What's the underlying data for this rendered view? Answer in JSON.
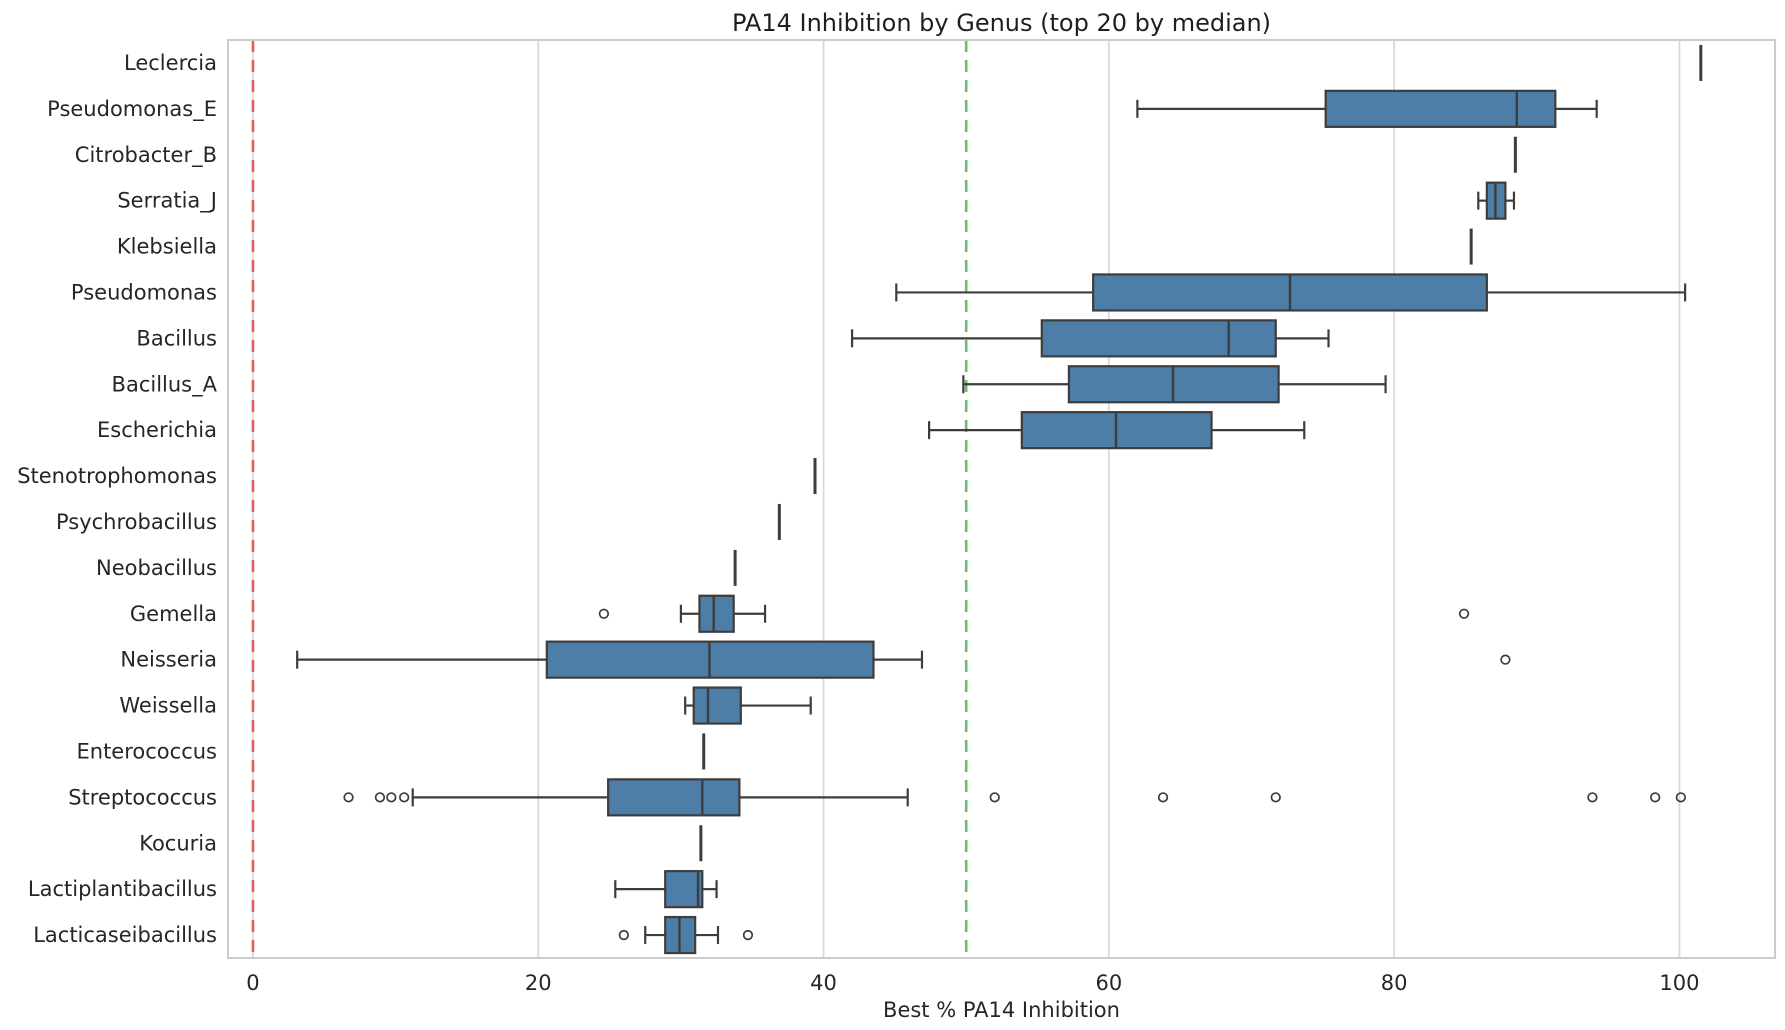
{
  "chart_data": {
    "type": "box",
    "orientation": "horizontal",
    "title": "PA14 Inhibition by Genus (top 20 by median)",
    "xlabel": "Best % PA14 Inhibition",
    "ylabel": "",
    "xlim": [
      -1.75,
      106.7
    ],
    "x_ticks": [
      0,
      20,
      40,
      60,
      80,
      100
    ],
    "grid": true,
    "legend": "none",
    "reference_lines": [
      {
        "x": 0,
        "color": "#e35f5f",
        "style": "dashed",
        "name": "zero-line"
      },
      {
        "x": 50,
        "color": "#6abf6a",
        "style": "dashed",
        "name": "fifty-percent-line"
      }
    ],
    "colors": {
      "box_fill": "#4d7ea8",
      "box_edge": "#3d3d3d",
      "grid": "#d9d9d9",
      "spine": "#cccccc",
      "text": "#262626",
      "background": "#ffffff"
    },
    "rows": [
      {
        "label": "Leclercia",
        "type": "single",
        "value": 101.5,
        "outliers": []
      },
      {
        "label": "Pseudomonas_E",
        "type": "box",
        "whislo": 62.0,
        "q1": 75.2,
        "med": 88.6,
        "q3": 91.3,
        "whishi": 94.2,
        "outliers": []
      },
      {
        "label": "Citrobacter_B",
        "type": "single",
        "value": 88.5,
        "outliers": []
      },
      {
        "label": "Serratia_J",
        "type": "box",
        "whislo": 85.9,
        "q1": 86.5,
        "med": 87.1,
        "q3": 87.8,
        "whishi": 88.4,
        "outliers": []
      },
      {
        "label": "Klebsiella",
        "type": "single",
        "value": 85.4,
        "outliers": []
      },
      {
        "label": "Pseudomonas",
        "type": "box",
        "whislo": 45.1,
        "q1": 58.9,
        "med": 72.7,
        "q3": 86.5,
        "whishi": 100.4,
        "outliers": []
      },
      {
        "label": "Bacillus",
        "type": "box",
        "whislo": 42.0,
        "q1": 55.3,
        "med": 68.4,
        "q3": 71.7,
        "whishi": 75.4,
        "outliers": []
      },
      {
        "label": "Bacillus_A",
        "type": "box",
        "whislo": 49.8,
        "q1": 57.2,
        "med": 64.5,
        "q3": 71.9,
        "whishi": 79.4,
        "outliers": []
      },
      {
        "label": "Escherichia",
        "type": "box",
        "whislo": 47.4,
        "q1": 53.9,
        "med": 60.5,
        "q3": 67.2,
        "whishi": 73.7,
        "outliers": []
      },
      {
        "label": "Stenotrophomonas",
        "type": "single",
        "value": 39.4,
        "outliers": []
      },
      {
        "label": "Psychrobacillus",
        "type": "single",
        "value": 36.9,
        "outliers": []
      },
      {
        "label": "Neobacillus",
        "type": "single",
        "value": 33.8,
        "outliers": []
      },
      {
        "label": "Gemella",
        "type": "box",
        "whislo": 30.0,
        "q1": 31.3,
        "med": 32.3,
        "q3": 33.7,
        "whishi": 35.9,
        "outliers": [
          24.6,
          84.9
        ]
      },
      {
        "label": "Neisseria",
        "type": "box",
        "whislo": 3.1,
        "q1": 20.6,
        "med": 32.0,
        "q3": 43.5,
        "whishi": 46.9,
        "outliers": [
          87.8
        ]
      },
      {
        "label": "Weissella",
        "type": "box",
        "whislo": 30.3,
        "q1": 30.9,
        "med": 31.9,
        "q3": 34.2,
        "whishi": 39.1,
        "outliers": []
      },
      {
        "label": "Enterococcus",
        "type": "single",
        "value": 31.6,
        "outliers": []
      },
      {
        "label": "Streptococcus",
        "type": "box",
        "whislo": 11.2,
        "q1": 24.9,
        "med": 31.5,
        "q3": 34.1,
        "whishi": 45.9,
        "outliers": [
          6.7,
          8.9,
          9.7,
          10.6,
          52.0,
          63.8,
          71.7,
          93.9,
          98.3,
          100.1
        ]
      },
      {
        "label": "Kocuria",
        "type": "single",
        "value": 31.4,
        "outliers": []
      },
      {
        "label": "Lactiplantibacillus",
        "type": "box",
        "whislo": 25.4,
        "q1": 28.9,
        "med": 31.2,
        "q3": 31.5,
        "whishi": 32.5,
        "outliers": []
      },
      {
        "label": "Lacticaseibacillus",
        "type": "box",
        "whislo": 27.5,
        "q1": 28.9,
        "med": 29.9,
        "q3": 31.0,
        "whishi": 32.6,
        "outliers": [
          26.0,
          34.7
        ]
      }
    ]
  }
}
